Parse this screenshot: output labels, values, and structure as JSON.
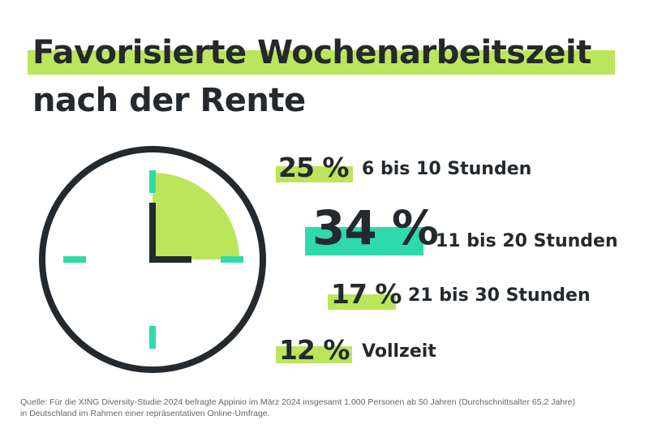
{
  "title_line1": "Favorisierte Wochenarbeitszeit",
  "title_line2": "nach der Rente",
  "colors": {
    "lime": "#bbe65c",
    "teal": "#2edaa9",
    "text": "#23292d"
  },
  "chart_data": {
    "type": "table",
    "categories": [
      "6 bis 10 Stunden",
      "11 bis 20 Stunden",
      "21 bis 30 Stunden",
      "Vollzeit"
    ],
    "values": [
      25,
      34,
      17,
      12
    ],
    "value_labels": [
      "25 %",
      "34 %",
      "17 %",
      "12 %"
    ],
    "highlight": "11 bis 20 Stunden",
    "clock_icon_sector": "12 to 3 o'clock"
  },
  "source_line1": "Quelle: Für die XING Diversity-Studie 2024 befragte Appinio im März 2024 insgesamt 1.000 Personen ab 50 Jahren (Durchschnittsalter 65,2 Jahre)",
  "source_line2": "in Deutschland im Rahmen einer repräsentativen Online-Umfrage."
}
